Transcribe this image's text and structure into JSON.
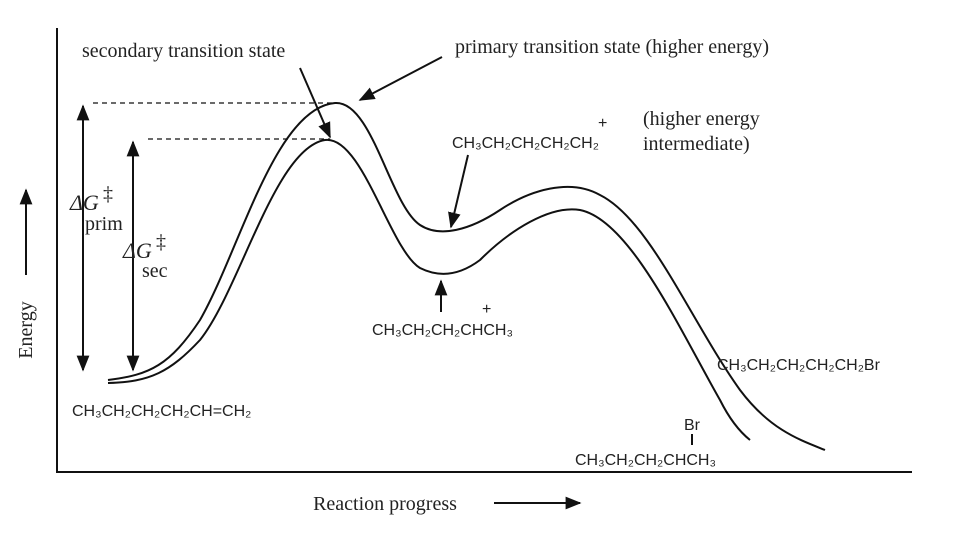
{
  "axes": {
    "y_label": "Energy",
    "x_label": "Reaction progress"
  },
  "annotations": {
    "secondary": "secondary transition state",
    "primary": "primary transition state (higher energy)",
    "higher_energy_1": "(higher energy",
    "higher_energy_2": "intermediate)"
  },
  "delta_g": {
    "prim": {
      "symbol": "ΔG",
      "dagger": "‡",
      "sub": "prim"
    },
    "sec": {
      "symbol": "ΔG",
      "dagger": "‡",
      "sub": "sec"
    }
  },
  "species": {
    "reactant": "CH₃CH₂CH₂CH₂CH=CH₂",
    "primary_cation": {
      "formula": "CH₃CH₂CH₂CH₂CH₂",
      "charge": "+"
    },
    "secondary_cation": {
      "formula": "CH₃CH₂CH₂CHCH₃",
      "charge": "+"
    },
    "primary_product": "CH₃CH₂CH₂CH₂CH₂Br",
    "secondary_product": {
      "substituent": "Br",
      "formula": "CH₃CH₂CH₂CHCH₃"
    }
  }
}
